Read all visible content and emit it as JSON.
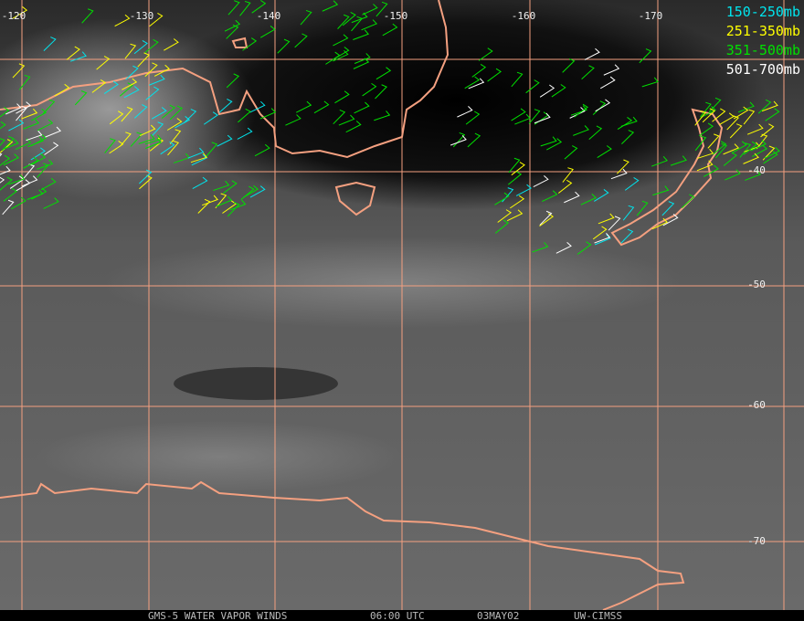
{
  "map": {
    "longitude_labels": [
      "-120",
      "-130",
      "-140",
      "-150",
      "-160",
      "-170"
    ],
    "latitude_labels": [
      "-40",
      "-50",
      "-60",
      "-70"
    ],
    "legend": [
      "150-250mb",
      "251-350mb",
      "351-500mb",
      "501-700mb"
    ],
    "footer": [
      "GMS-5 WATER VAPOR WINDS",
      "06:00 UTC",
      "03MAY02",
      "UW-CIMSS"
    ]
  }
}
